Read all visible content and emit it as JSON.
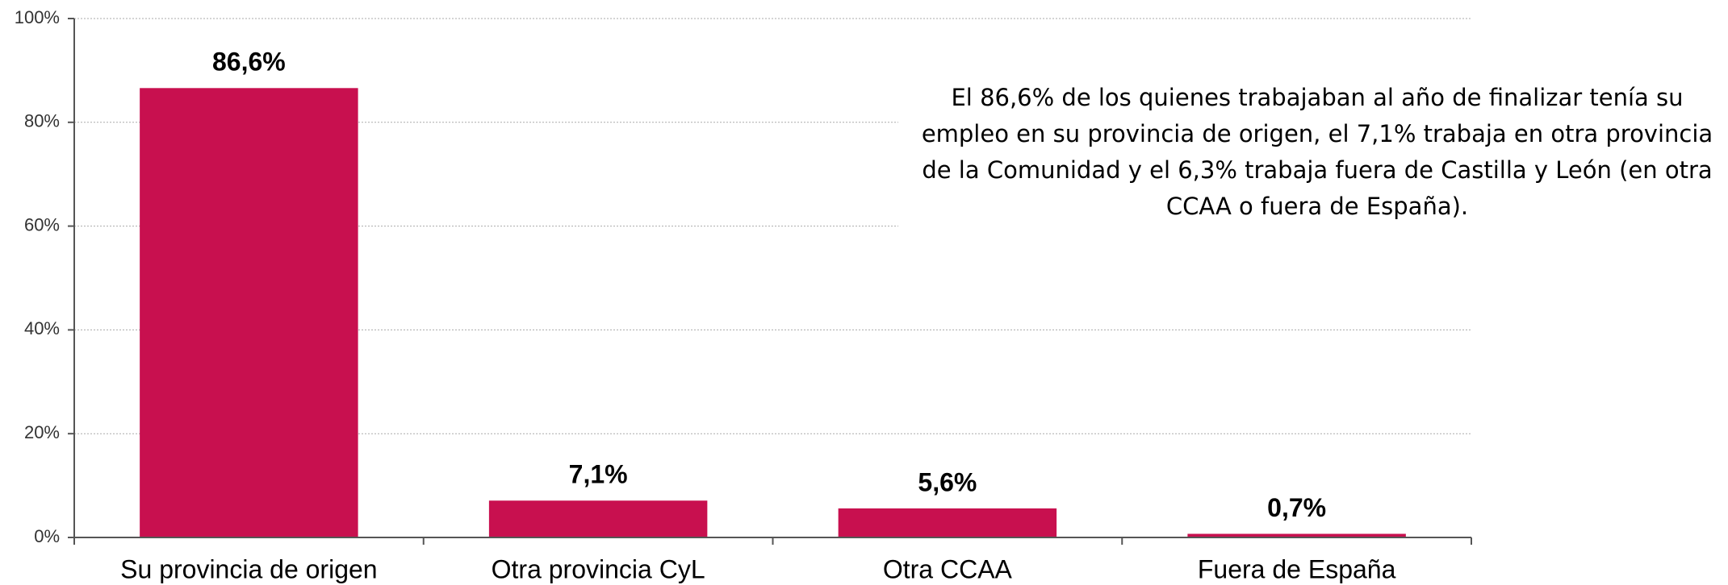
{
  "chart_data": {
    "type": "bar",
    "categories": [
      "Su provincia de origen",
      "Otra provincia CyL",
      "Otra CCAA",
      "Fuera de España"
    ],
    "values": [
      86.6,
      7.1,
      5.6,
      0.7
    ],
    "value_labels": [
      "86,6%",
      "7,1%",
      "5,6%",
      "0,7%"
    ],
    "color": "#c8104f",
    "ylim": [
      0,
      100
    ],
    "yticks": [
      {
        "value": 0,
        "label": "0%"
      },
      {
        "value": 20,
        "label": "20%"
      },
      {
        "value": 40,
        "label": "40%"
      },
      {
        "value": 60,
        "label": "60%"
      },
      {
        "value": 80,
        "label": "80%"
      },
      {
        "value": 100,
        "label": "100%"
      }
    ],
    "grid": true,
    "annotation": [
      "El 86,6% de los quienes trabajaban al año de finalizar tenía su",
      "empleo en su provincia de origen, el 7,1% trabaja en otra provincia",
      "de la Comunidad y el 6,3% trabaja fuera de Castilla y León (en otra",
      "CCAA o fuera de España)."
    ]
  }
}
